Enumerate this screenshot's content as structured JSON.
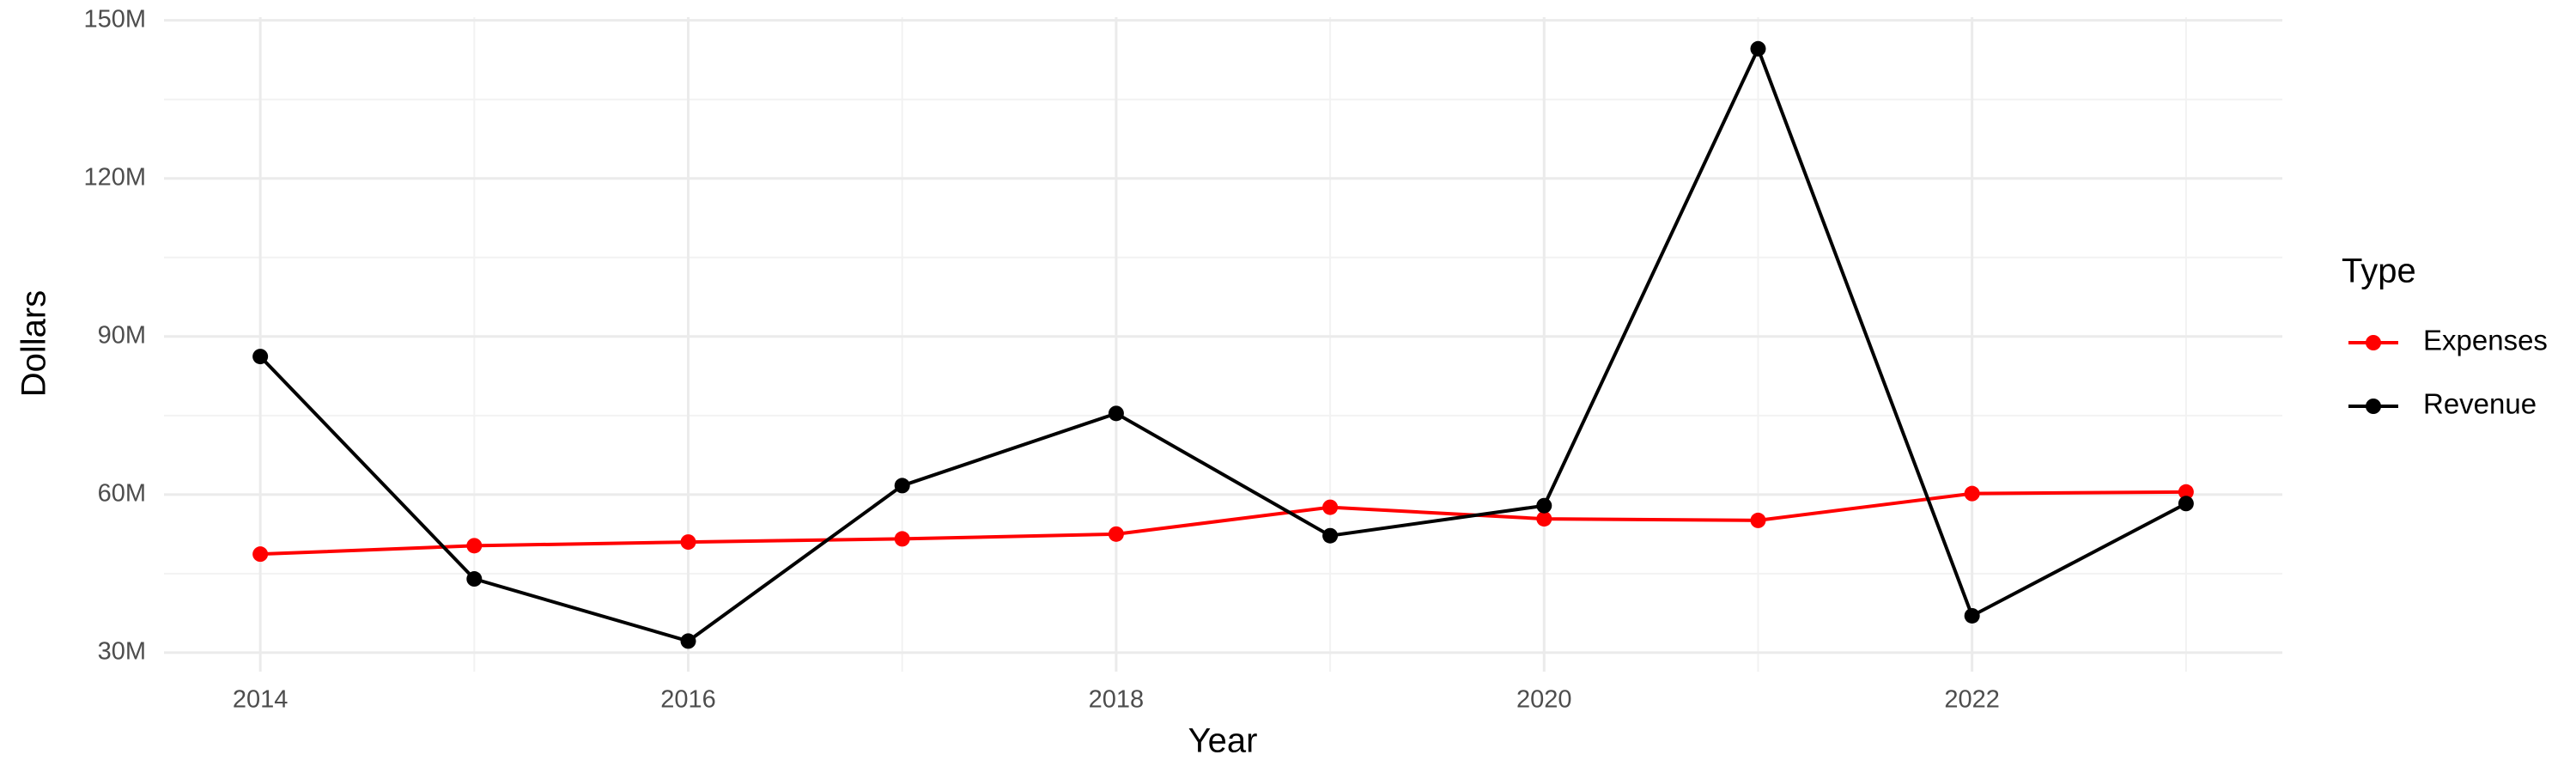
{
  "chart_data": {
    "type": "line",
    "x_label": "Year",
    "y_label": "Dollars",
    "x": [
      2014,
      2015,
      2016,
      2017,
      2018,
      2019,
      2020,
      2021,
      2022,
      2023
    ],
    "series": [
      {
        "name": "Expenses",
        "color": "#ff0000",
        "values": [
          48700000,
          50300000,
          51000000,
          51600000,
          52500000,
          57600000,
          55400000,
          55100000,
          60200000,
          60500000
        ]
      },
      {
        "name": "Revenue",
        "color": "#000000",
        "values": [
          86200000,
          44000000,
          32200000,
          61700000,
          75400000,
          52200000,
          57900000,
          144600000,
          37000000,
          58300000
        ]
      }
    ],
    "xlim": [
      2013.55,
      2023.45
    ],
    "xticks": [
      2014,
      2016,
      2018,
      2020,
      2022
    ],
    "ylim": [
      26400000,
      150600000
    ],
    "yticks": [
      {
        "value": 30000000,
        "label": "30M"
      },
      {
        "value": 60000000,
        "label": "60M"
      },
      {
        "value": 90000000,
        "label": "90M"
      },
      {
        "value": 120000000,
        "label": "120M"
      },
      {
        "value": 150000000,
        "label": "150M"
      }
    ],
    "grid": true,
    "legend_title": "Type",
    "legend_position": "right"
  }
}
